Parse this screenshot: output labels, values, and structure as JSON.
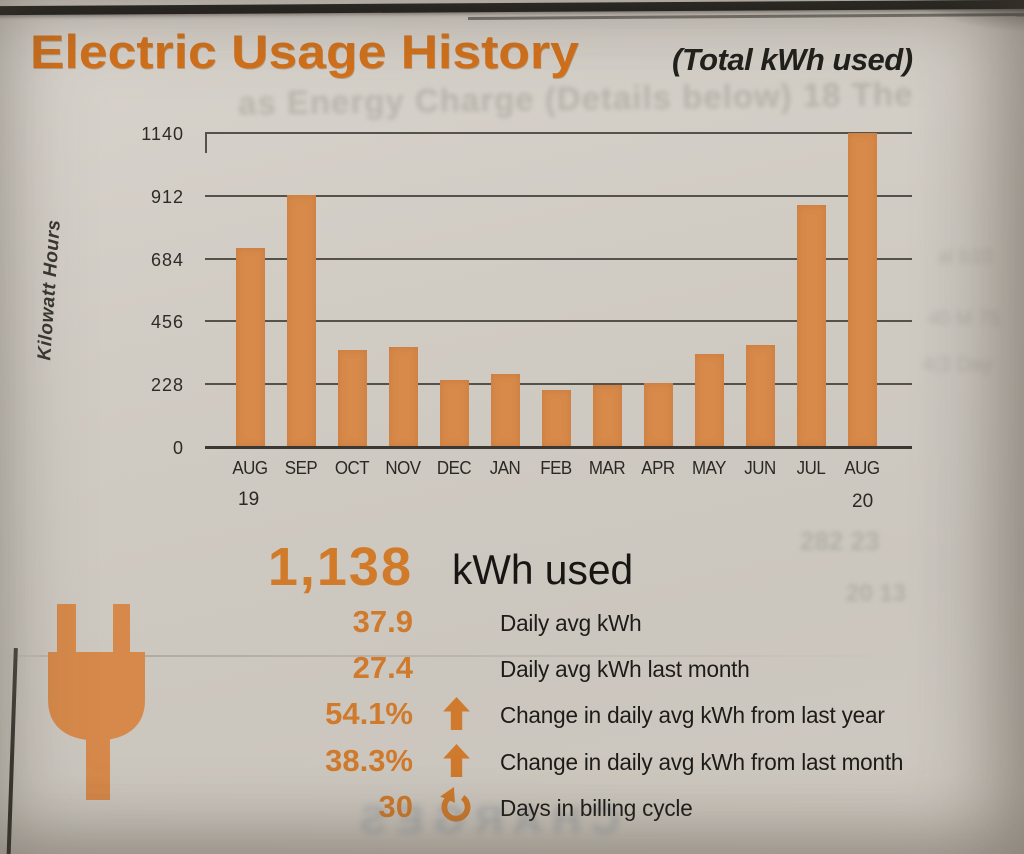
{
  "header": {
    "title": "Electric Usage History",
    "subtitle": "(Total kWh used)"
  },
  "chart_data": {
    "type": "bar",
    "title": "Electric Usage History",
    "subtitle": "(Total kWh used)",
    "ylabel": "Kilowatt Hours",
    "xlabel": "",
    "categories": [
      "AUG",
      "SEP",
      "OCT",
      "NOV",
      "DEC",
      "JAN",
      "FEB",
      "MAR",
      "APR",
      "MAY",
      "JUN",
      "JUL",
      "AUG"
    ],
    "year_start": "19",
    "year_end": "20",
    "values": [
      720,
      912,
      350,
      360,
      240,
      260,
      205,
      220,
      228,
      335,
      365,
      875,
      1138
    ],
    "yticks": [
      0,
      228,
      456,
      684,
      912,
      1140
    ],
    "ylim": [
      0,
      1140
    ],
    "grid": true,
    "legend_position": "none",
    "bar_color": "#d78a4a"
  },
  "summary": {
    "total_value": "1,138",
    "total_label": "kWh used",
    "rows": [
      {
        "value": "37.9",
        "icon": "none",
        "label": "Daily avg kWh"
      },
      {
        "value": "27.4",
        "icon": "none",
        "label": "Daily avg kWh last month"
      },
      {
        "value": "54.1%",
        "icon": "up-arrow-icon",
        "label": "Change in daily avg kWh from last year"
      },
      {
        "value": "38.3%",
        "icon": "up-arrow-icon",
        "label": "Change in daily avg kWh from last month"
      },
      {
        "value": "30",
        "icon": "refresh-icon",
        "label": "Days in billing cycle"
      }
    ]
  },
  "colors": {
    "title_orange": "#d2711c",
    "stat_orange": "#cf7a2c",
    "bar_orange": "#d78a4a",
    "ink": "#1e1c18",
    "paper": "#cfcac2"
  },
  "artifacts": {
    "ghost_top": "as Energy Charge (Details below) 18 The",
    "ghost_right_1": "al b10",
    "ghost_right_2": "40 M 75",
    "ghost_right_3": "4(3 Day",
    "ghost_mid_1": "282 23",
    "ghost_mid_2": "20 13",
    "ghost_bottom": "CHARGES"
  }
}
